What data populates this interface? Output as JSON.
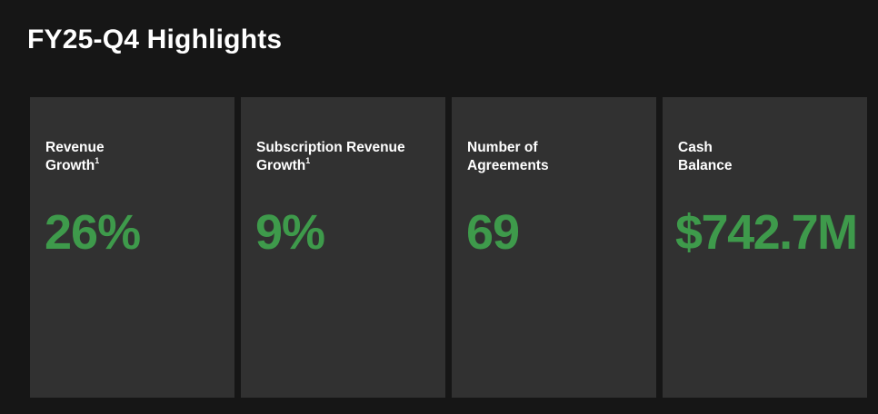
{
  "title": "FY25-Q4 Highlights",
  "colors": {
    "background": "#161616",
    "card": "#313131",
    "accent_green": "#3e9a4b",
    "text": "#ffffff"
  },
  "cards": [
    {
      "label_line1": "Revenue",
      "label_line2": "Growth",
      "footnote": "1",
      "value": "26%"
    },
    {
      "label_line1": "Subscription Revenue",
      "label_line2": "Growth",
      "footnote": "1",
      "value": "9%"
    },
    {
      "label_line1": "Number of",
      "label_line2": "Agreements",
      "footnote": "",
      "value": "69"
    },
    {
      "label_line1": "Cash",
      "label_line2": "Balance",
      "footnote": "",
      "value": "$742.7M"
    }
  ]
}
